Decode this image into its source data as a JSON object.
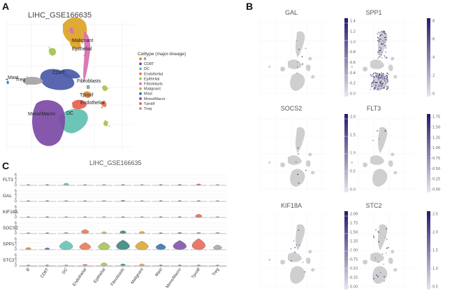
{
  "figure": {
    "panel_labels": [
      "A",
      "B",
      "C"
    ],
    "umap_title": "LIHC_GSE166635",
    "violin_title": "LIHC_GSE166635",
    "legend_title": "Celltype (major-lineage)"
  },
  "chart_data": [
    {
      "type": "scatter",
      "title": "LIHC_GSE166635",
      "legend": [
        {
          "label": "B",
          "color": "#e2882f"
        },
        {
          "label": "CD8T",
          "color": "#4a5aa8"
        },
        {
          "label": "DC",
          "color": "#5fbfb0"
        },
        {
          "label": "Endothelial",
          "color": "#e8744a"
        },
        {
          "label": "Epithelial",
          "color": "#a3c24d"
        },
        {
          "label": "Fibroblasts",
          "color": "#d86fb0"
        },
        {
          "label": "Malignant",
          "color": "#dca327"
        },
        {
          "label": "Mast",
          "color": "#2b6fa8"
        },
        {
          "label": "Mono/Macro",
          "color": "#7b4aa5"
        },
        {
          "label": "Tprolif",
          "color": "#e8604e"
        },
        {
          "label": "Treg",
          "color": "#a4a4a4"
        }
      ],
      "cluster_labels": [
        "Malignant",
        "Epithelial",
        "CD8T",
        "Mast",
        "Treg",
        "Fibroblasts",
        "B",
        "Tprolif",
        "Endothelial",
        "Mono/Macro",
        "DC"
      ]
    },
    {
      "type": "scatter",
      "panels": [
        {
          "gene": "GAL",
          "ticks": [
            "1.4",
            "1.2",
            "1.0",
            "0.8",
            "0.6",
            "0.4",
            "0.2",
            "0.0"
          ]
        },
        {
          "gene": "SPP1",
          "ticks": [
            "8",
            "6",
            "4",
            "2",
            "0"
          ]
        },
        {
          "gene": "SOCS2",
          "ticks": [
            "2.0",
            "1.5",
            "1.0",
            "0.5",
            "0.0"
          ]
        },
        {
          "gene": "FLT3",
          "ticks": [
            "1.75",
            "1.50",
            "1.25",
            "1.00",
            "0.75",
            "0.50",
            "0.25",
            "0.00"
          ]
        },
        {
          "gene": "KIF18A",
          "ticks": [
            "2.00",
            "1.75",
            "1.50",
            "1.25",
            "1.00",
            "0.75",
            "0.50",
            "0.25",
            "0.00"
          ]
        },
        {
          "gene": "STC2",
          "ticks": [
            "2.5",
            "2.0",
            "1.5",
            "1.0",
            "0.5"
          ]
        }
      ]
    },
    {
      "type": "violin",
      "title": "LIHC_GSE166635",
      "categories": [
        "B",
        "CD8T",
        "DC",
        "Endothelial",
        "Epithelial",
        "Fibroblasts",
        "Malignant",
        "Mast",
        "Mono/Macro",
        "Tprolif",
        "Treg"
      ],
      "colors": [
        "#e2882f",
        "#4a5aa8",
        "#5fbfb0",
        "#e8744a",
        "#a3c24d",
        "#2f7f78",
        "#dca327",
        "#2b6fa8",
        "#7b4aa5",
        "#e8604e",
        "#a4a4a4"
      ],
      "genes": [
        "FLT3",
        "GAL",
        "KIF18A",
        "SOCS2",
        "SPP1",
        "STC2"
      ],
      "ytick_labels": [
        "6",
        "4",
        "2",
        "0"
      ],
      "values": {
        "FLT3": [
          0.1,
          0.1,
          0.6,
          0.1,
          0.1,
          0.1,
          0.1,
          0.1,
          0.2,
          0.4,
          0.1
        ],
        "GAL": [
          0.1,
          0.1,
          0.2,
          0.1,
          0.2,
          0.3,
          0.1,
          0.1,
          0.1,
          0.2,
          0.1
        ],
        "KIF18A": [
          0.1,
          0.1,
          0.1,
          0.1,
          0.1,
          0.1,
          0.1,
          0.1,
          0.1,
          0.9,
          0.1
        ],
        "SOCS2": [
          0.2,
          0.2,
          0.3,
          1.1,
          0.5,
          0.8,
          0.6,
          0.2,
          0.3,
          0.3,
          0.3
        ],
        "SPP1": [
          0.6,
          0.5,
          2.4,
          1.9,
          2.0,
          2.6,
          2.3,
          1.6,
          2.5,
          3.0,
          1.3
        ],
        "STC2": [
          0.1,
          0.1,
          0.1,
          0.4,
          0.8,
          0.5,
          0.5,
          0.1,
          0.1,
          0.2,
          0.1
        ]
      }
    }
  ]
}
